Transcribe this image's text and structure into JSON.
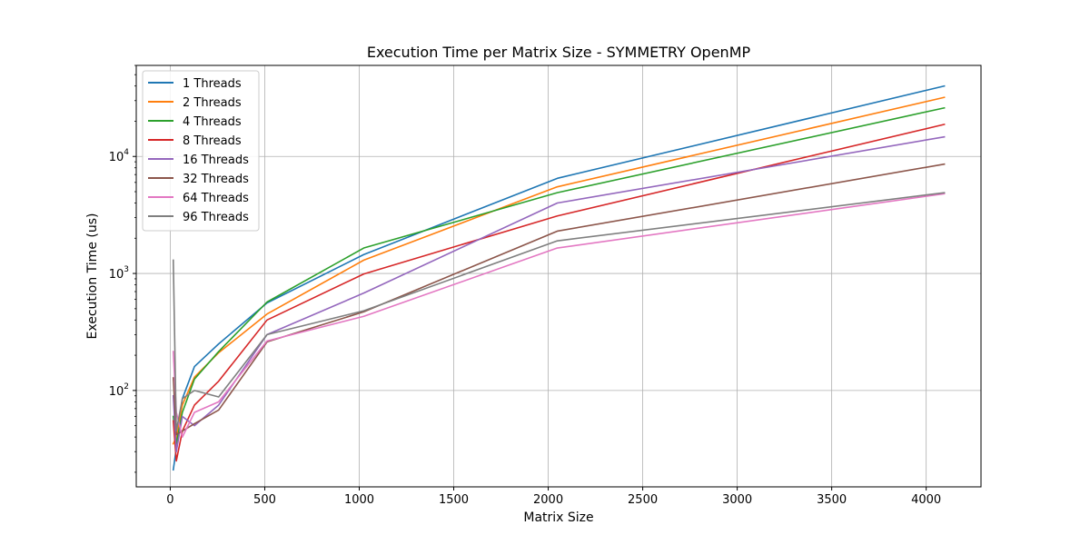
{
  "chart_data": {
    "type": "line",
    "title": "Execution Time per Matrix Size - SYMMETRY OpenMP",
    "xlabel": "Matrix Size",
    "ylabel": "Execution Time (us)",
    "x_scale": "linear",
    "y_scale": "log",
    "xlim": [
      -180,
      4290
    ],
    "ylim": [
      15,
      60000
    ],
    "x_ticks": [
      0,
      500,
      1000,
      1500,
      2000,
      2500,
      3000,
      3500,
      4000
    ],
    "x_tick_labels": [
      "0",
      "500",
      "1000",
      "1500",
      "2000",
      "2500",
      "3000",
      "3500",
      "4000"
    ],
    "y_ticks": [
      100,
      1000,
      10000
    ],
    "y_tick_labels": [
      {
        "base": "10",
        "exp": "2"
      },
      {
        "base": "10",
        "exp": "3"
      },
      {
        "base": "10",
        "exp": "4"
      }
    ],
    "grid": true,
    "legend_position": "upper-left",
    "x": [
      16,
      32,
      64,
      128,
      256,
      512,
      1024,
      2048,
      4096
    ],
    "series": [
      {
        "name": "1 Threads",
        "color": "#1f77b4",
        "values": [
          21,
          32,
          85,
          160,
          250,
          560,
          1450,
          6500,
          40000
        ]
      },
      {
        "name": "2 Threads",
        "color": "#ff7f0e",
        "values": [
          35,
          40,
          75,
          130,
          210,
          450,
          1300,
          5500,
          32000
        ]
      },
      {
        "name": "4 Threads",
        "color": "#2ca02c",
        "values": [
          60,
          35,
          65,
          125,
          215,
          570,
          1650,
          4900,
          26000
        ]
      },
      {
        "name": "8 Threads",
        "color": "#d62728",
        "values": [
          55,
          25,
          45,
          75,
          120,
          400,
          990,
          3100,
          18800
        ]
      },
      {
        "name": "16 Threads",
        "color": "#9467bd",
        "values": [
          90,
          30,
          60,
          50,
          75,
          300,
          680,
          4000,
          14700
        ]
      },
      {
        "name": "32 Threads",
        "color": "#8c564b",
        "values": [
          128,
          42,
          45,
          52,
          68,
          260,
          470,
          2300,
          8600
        ]
      },
      {
        "name": "64 Threads",
        "color": "#e377c2",
        "values": [
          215,
          65,
          40,
          65,
          80,
          265,
          430,
          1650,
          4800
        ]
      },
      {
        "name": "96 Threads",
        "color": "#7f7f7f",
        "values": [
          1300,
          45,
          85,
          100,
          88,
          300,
          480,
          1900,
          4900
        ]
      }
    ]
  }
}
